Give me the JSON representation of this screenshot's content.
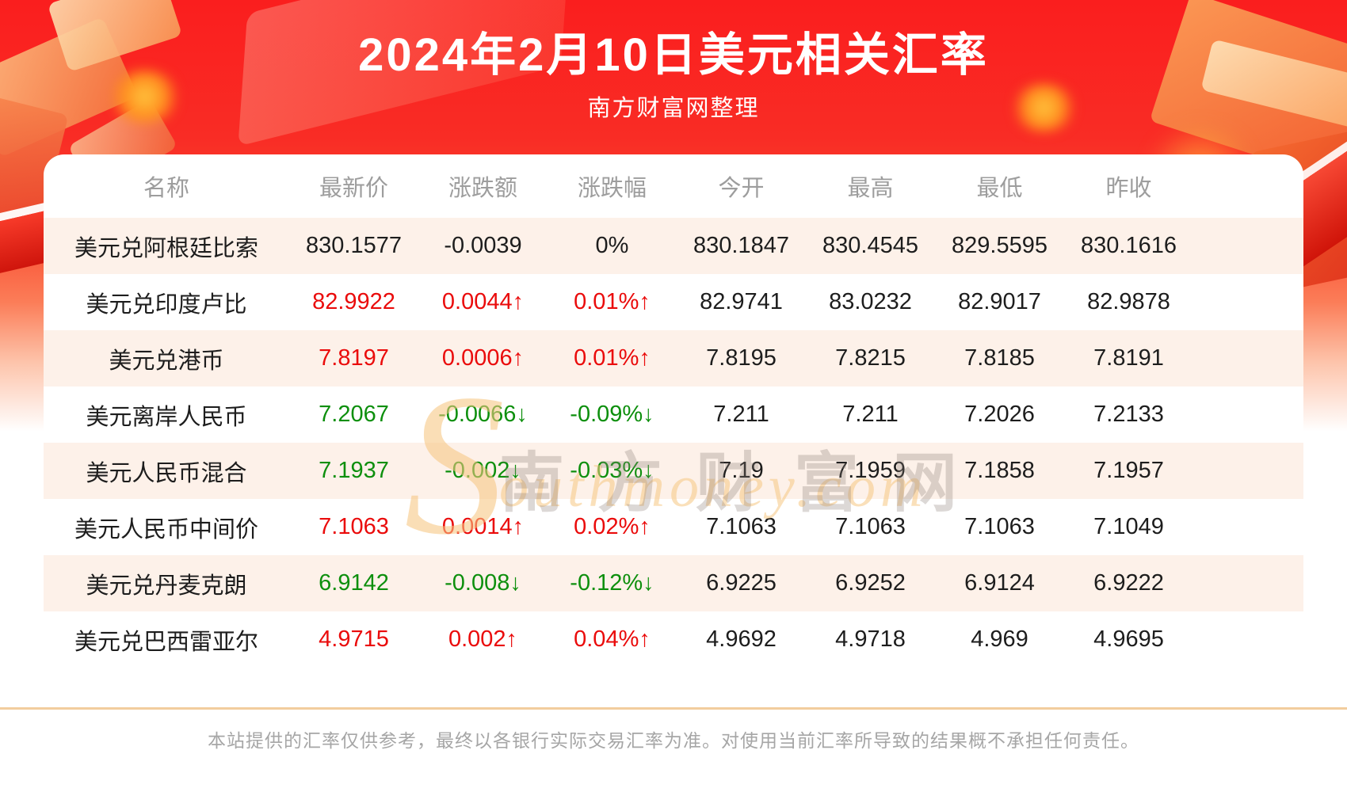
{
  "banner": {
    "title": "2024年2月10日美元相关汇率",
    "subtitle": "南方财富网整理"
  },
  "table": {
    "columns": [
      "名称",
      "最新价",
      "涨跌额",
      "涨跌幅",
      "今开",
      "最高",
      "最低",
      "昨收"
    ],
    "rows": [
      {
        "name": "美元兑阿根廷比索",
        "last": "830.1577",
        "change": "-0.0039",
        "change_pct": "0%",
        "open": "830.1847",
        "high": "830.4545",
        "low": "829.5595",
        "prev_close": "830.1616",
        "trend": "flat"
      },
      {
        "name": "美元兑印度卢比",
        "last": "82.9922",
        "change": "0.0044↑",
        "change_pct": "0.01%↑",
        "open": "82.9741",
        "high": "83.0232",
        "low": "82.9017",
        "prev_close": "82.9878",
        "trend": "up"
      },
      {
        "name": "美元兑港币",
        "last": "7.8197",
        "change": "0.0006↑",
        "change_pct": "0.01%↑",
        "open": "7.8195",
        "high": "7.8215",
        "low": "7.8185",
        "prev_close": "7.8191",
        "trend": "up"
      },
      {
        "name": "美元离岸人民币",
        "last": "7.2067",
        "change": "-0.0066↓",
        "change_pct": "-0.09%↓",
        "open": "7.211",
        "high": "7.211",
        "low": "7.2026",
        "prev_close": "7.2133",
        "trend": "down"
      },
      {
        "name": "美元人民币混合",
        "last": "7.1937",
        "change": "-0.002↓",
        "change_pct": "-0.03%↓",
        "open": "7.19",
        "high": "7.1959",
        "low": "7.1858",
        "prev_close": "7.1957",
        "trend": "down"
      },
      {
        "name": "美元人民币中间价",
        "last": "7.1063",
        "change": "0.0014↑",
        "change_pct": "0.02%↑",
        "open": "7.1063",
        "high": "7.1063",
        "low": "7.1063",
        "prev_close": "7.1049",
        "trend": "up"
      },
      {
        "name": "美元兑丹麦克朗",
        "last": "6.9142",
        "change": "-0.008↓",
        "change_pct": "-0.12%↓",
        "open": "6.9225",
        "high": "6.9252",
        "low": "6.9124",
        "prev_close": "6.9222",
        "trend": "down"
      },
      {
        "name": "美元兑巴西雷亚尔",
        "last": "4.9715",
        "change": "0.002↑",
        "change_pct": "0.04%↑",
        "open": "4.9692",
        "high": "4.9718",
        "low": "4.969",
        "prev_close": "4.9695",
        "trend": "up"
      }
    ]
  },
  "watermark": {
    "cn": "南方财富网",
    "en_initial": "S",
    "en_rest": "outhmoney.com"
  },
  "footer": {
    "disclaimer": "本站提供的汇率仅供参考，最终以各银行实际交易汇率为准。对使用当前汇率所导致的结果概不承担任何责任。"
  },
  "colors": {
    "up": "#ea0b0b",
    "down": "#0d8f0d",
    "flat": "#1d1d1d",
    "banner_red": "#fa1e1e",
    "row_stripe": "#fdf1e9"
  }
}
